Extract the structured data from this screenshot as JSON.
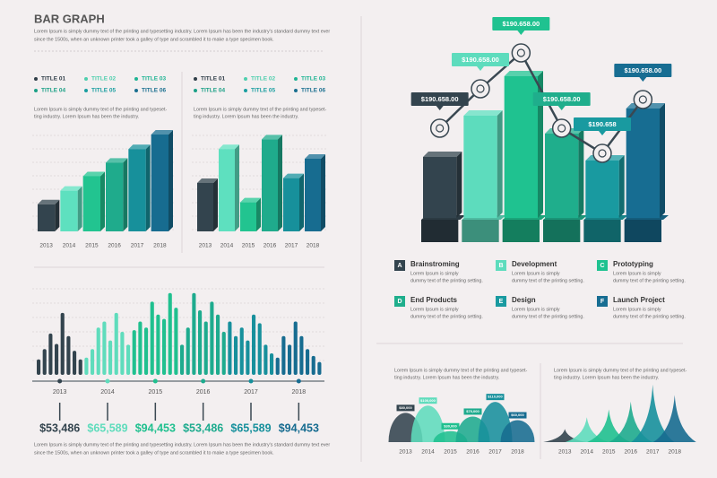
{
  "header": {
    "title": "BAR GRAPH",
    "description": [
      "Lorem Ipsum is simply dummy text of the printing and typesetting industry. Lorem Ipsum has been the industry's standard dummy text ever",
      "since the 1500s, when an unknown printer took a galley of type and scrambled it to make a type specimen book."
    ]
  },
  "footer": {
    "description": [
      "Lorem Ipsum is simply dummy text of the printing and typesetting industry. Lorem Ipsum has been the industry's standard dummy text ever",
      "since the 1500s, when an unknown printer took a galley of type and scrambled it to make a type specimen book."
    ]
  },
  "chart_data": [
    {
      "type": "bar3d",
      "legend": [
        {
          "label": "TITLE 01",
          "color": "#2f3e48"
        },
        {
          "label": "TITLE 02",
          "color": "#4fcfae"
        },
        {
          "label": "TITLE 03",
          "color": "#1fb493"
        },
        {
          "label": "TITLE 04",
          "color": "#1ba086"
        },
        {
          "label": "TITLE 05",
          "color": "#1a9ea0"
        },
        {
          "label": "TITLE 06",
          "color": "#1a6f8f"
        }
      ],
      "description": [
        "Lorem Ipsum is simply dummy text of the printing and typeset-",
        "ting industry. Lorem Ipsum has been the industry."
      ],
      "categories": [
        "2013",
        "2014",
        "2015",
        "2016",
        "2017",
        "2018"
      ],
      "values": [
        28,
        42,
        57,
        71,
        85,
        100
      ],
      "colors": [
        "#33444e",
        "#5ee0bf",
        "#22c490",
        "#1fab8c",
        "#17909b",
        "#176c90"
      ],
      "ylim": [
        0,
        100
      ]
    },
    {
      "type": "bar3d",
      "legend": [
        {
          "label": "TITLE 01",
          "color": "#2f3e48"
        },
        {
          "label": "TITLE 02",
          "color": "#4fcfae"
        },
        {
          "label": "TITLE 03",
          "color": "#1fb493"
        },
        {
          "label": "TITLE 04",
          "color": "#1ba086"
        },
        {
          "label": "TITLE 05",
          "color": "#1a9ea0"
        },
        {
          "label": "TITLE 06",
          "color": "#1a6f8f"
        }
      ],
      "description": [
        "Lorem Ipsum is simply dummy text of the printing and typeset-",
        "ting industry. Lorem Ipsum has been the industry."
      ],
      "categories": [
        "2013",
        "2014",
        "2015",
        "2016",
        "2017",
        "2018"
      ],
      "values": [
        50,
        85,
        30,
        95,
        55,
        75
      ],
      "colors": [
        "#33444e",
        "#5ee0bf",
        "#22c490",
        "#1fab8c",
        "#17909b",
        "#176c90"
      ],
      "ylim": [
        0,
        100
      ]
    },
    {
      "type": "bar-line3d",
      "categories": [
        "Brainstroming",
        "Development",
        "Prototyping",
        "End Products",
        "Design",
        "Launch Project"
      ],
      "letters": [
        "A",
        "B",
        "C",
        "D",
        "E",
        "F"
      ],
      "descriptions": [
        [
          "Lorem Ipsum is simply",
          "dummy text of the printing setting."
        ],
        [
          "Lorem Ipsum is simply",
          "dummy text of the printing setting."
        ],
        [
          "Lorem Ipsum is simply",
          "dummy text of the printing setting."
        ],
        [
          "Lorem Ipsum is simply",
          "dummy text of the printing setting."
        ],
        [
          "Lorem Ipsum is simply",
          "dummy text of the printing setting."
        ],
        [
          "Lorem Ipsum is simply",
          "dummy text of the printing setting."
        ]
      ],
      "values": [
        35,
        58,
        80,
        48,
        33,
        62
      ],
      "colors": [
        "#33444e",
        "#5ddcbd",
        "#1fc290",
        "#1fae8c",
        "#199aa0",
        "#176d92"
      ],
      "line": {
        "values": [
          51,
          73,
          93,
          51,
          37,
          67
        ],
        "color": "#3a4852"
      },
      "annotations": [
        "$190.658.00",
        "$190.658.00",
        "$190.658.00",
        "$190.658.00",
        "$190.658",
        "$190.658.00"
      ],
      "ylim": [
        0,
        100
      ]
    },
    {
      "type": "bar-groups",
      "categories": [
        "2013",
        "2014",
        "2015",
        "2016",
        "2017",
        "2018"
      ],
      "groups": [
        [
          18,
          30,
          48,
          36,
          72,
          45,
          28,
          18
        ],
        [
          20,
          30,
          55,
          62,
          40,
          72,
          50,
          35
        ],
        [
          52,
          62,
          55,
          85,
          70,
          65,
          95,
          78
        ],
        [
          35,
          55,
          95,
          75,
          62,
          85,
          70,
          50
        ],
        [
          62,
          45,
          55,
          40,
          70,
          60,
          35,
          25
        ],
        [
          20,
          45,
          35,
          62,
          45,
          30,
          22,
          15
        ]
      ],
      "colors": [
        "#33444e",
        "#5fdcbc",
        "#20c08f",
        "#1eab8e",
        "#17909c",
        "#176c90"
      ],
      "totals": [
        53486,
        65589,
        94453,
        53486,
        65589,
        94453
      ],
      "totals_labels": [
        "$53,486",
        "$65,589",
        "$94,453",
        "$53,486",
        "$65,589",
        "$94,453"
      ],
      "ylim": [
        0,
        100
      ]
    },
    {
      "type": "dome",
      "description": [
        "Lorem Ipsum is simply dummy text of the printing and typeset-",
        "ting industry. Lorem Ipsum has been the industry."
      ],
      "categories": [
        "2013",
        "2014",
        "2015",
        "2016",
        "2017",
        "2018"
      ],
      "values": [
        80000,
        100000,
        30000,
        70000,
        110000,
        60000
      ],
      "value_labels": [
        "$80,000",
        "$100,000",
        "$30,000",
        "$70,000",
        "$110,000",
        "$60,000"
      ],
      "colors": [
        "#33444e",
        "#5fdcbc",
        "#20c08f",
        "#1eab8e",
        "#17909c",
        "#176c90"
      ],
      "ylim": [
        0,
        130000
      ]
    },
    {
      "type": "peak",
      "description": [
        "Lorem Ipsum is simply dummy text of the printing and typeset-",
        "ting industry. Lorem Ipsum has been the industry."
      ],
      "categories": [
        "2013",
        "2014",
        "2015",
        "2016",
        "2017",
        "2018"
      ],
      "values": [
        20,
        38,
        50,
        62,
        88,
        72
      ],
      "colors": [
        "#33444e",
        "#5fdcbc",
        "#20c08f",
        "#1eab8e",
        "#17909c",
        "#176c90"
      ],
      "ylim": [
        0,
        100
      ]
    }
  ]
}
